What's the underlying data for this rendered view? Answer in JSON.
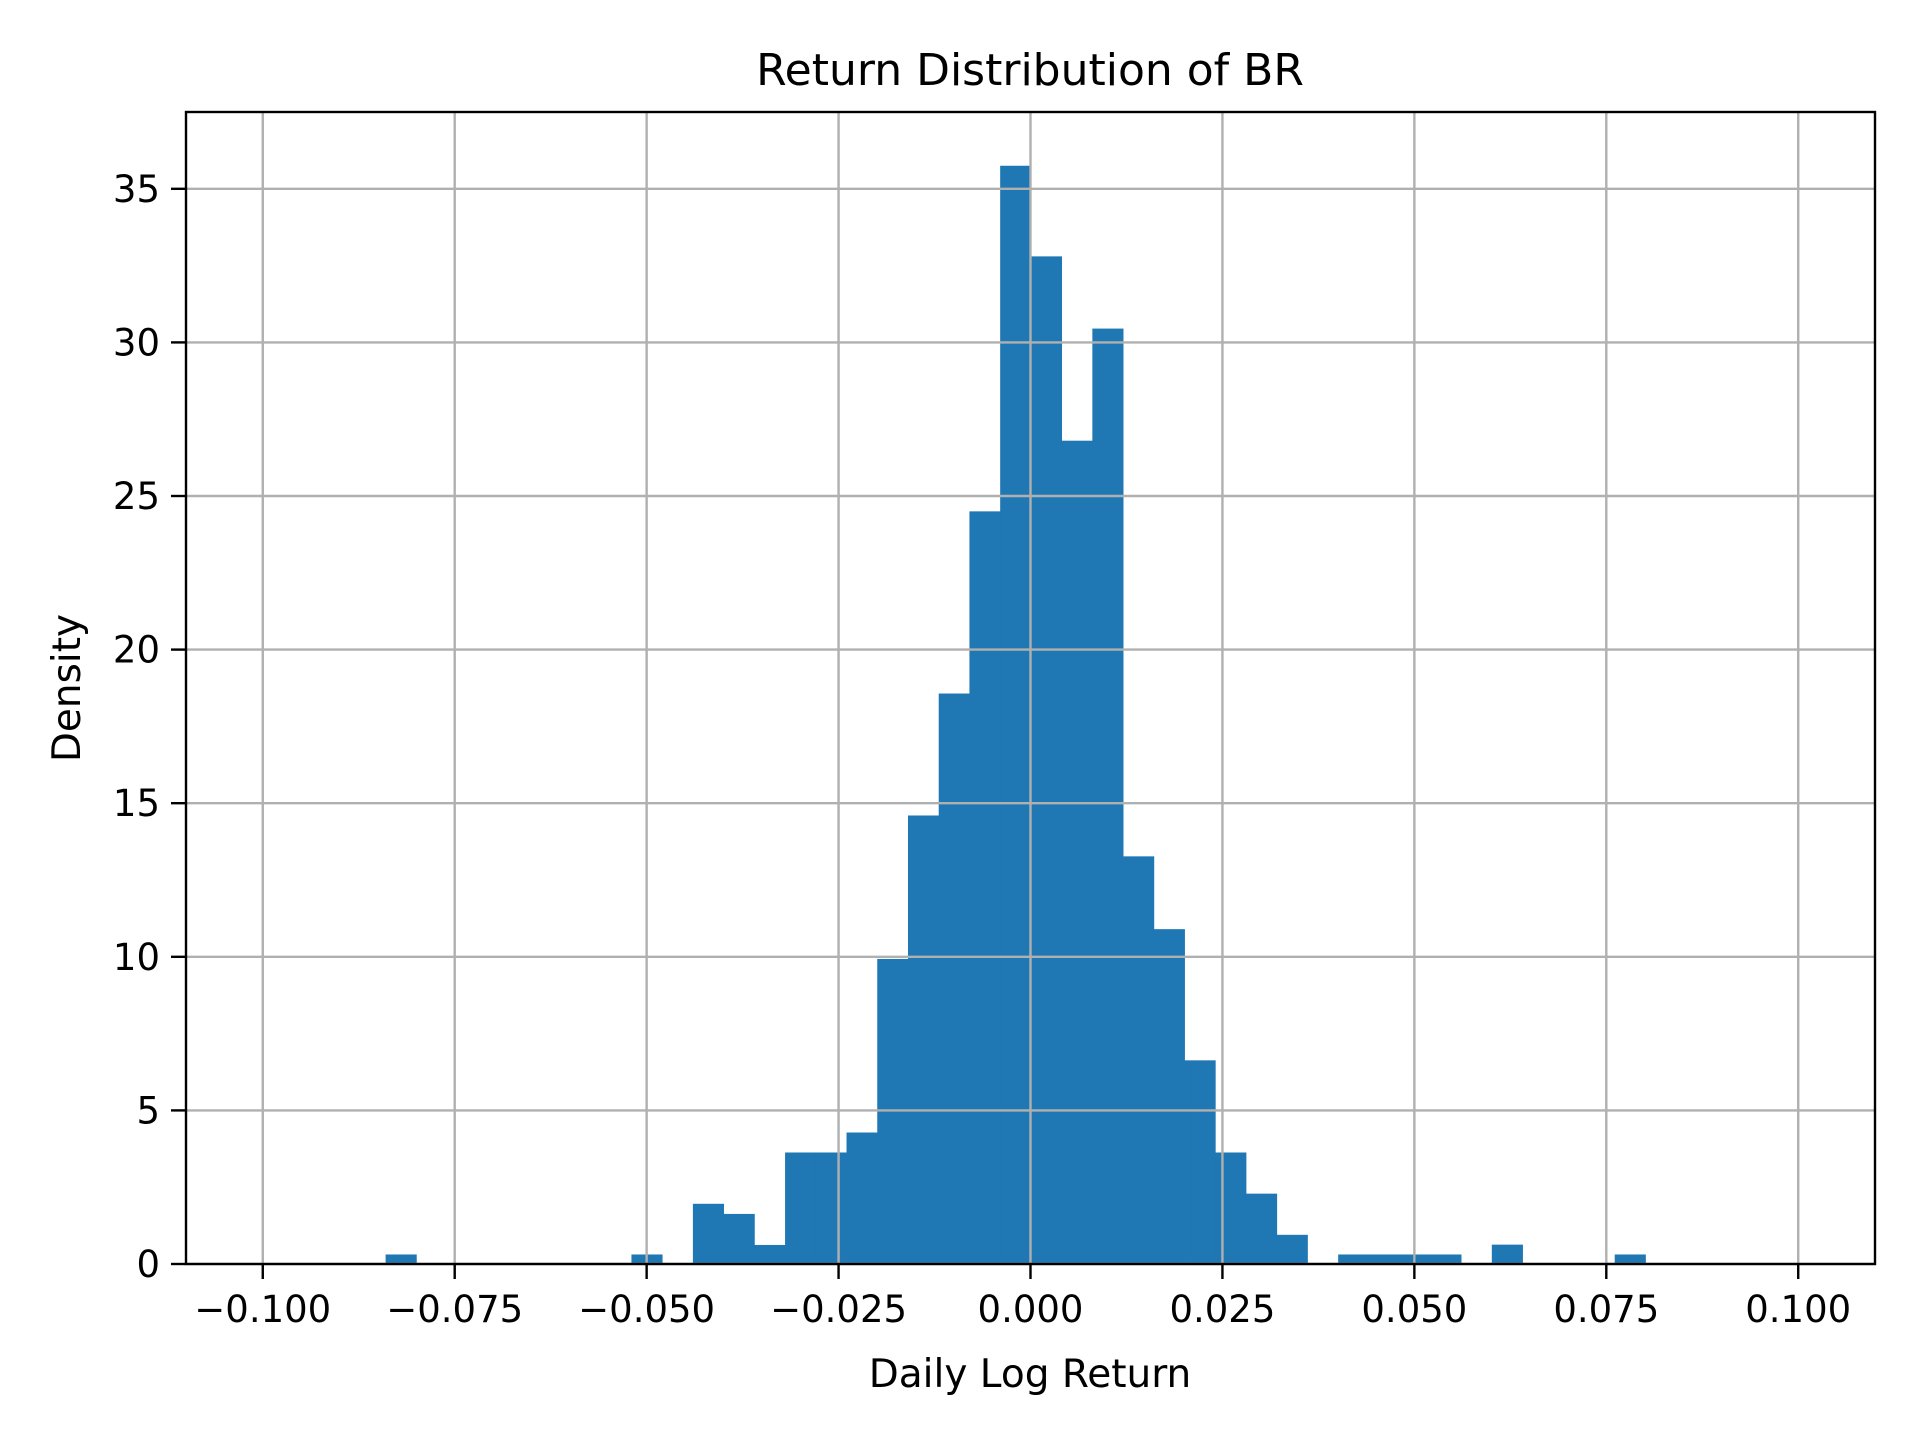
{
  "chart_data": {
    "type": "bar",
    "subtype": "histogram",
    "title": "Return Distribution of BR",
    "xlabel": "Daily Log Return",
    "ylabel": "Density",
    "xlim": [
      -0.11,
      0.11
    ],
    "ylim": [
      0,
      37.5
    ],
    "grid": true,
    "legend": null,
    "x_ticks": [
      -0.1,
      -0.075,
      -0.05,
      -0.025,
      0.0,
      0.025,
      0.05,
      0.075,
      0.1
    ],
    "x_tick_labels": [
      "−0.100",
      "−0.075",
      "−0.050",
      "−0.025",
      "0.000",
      "0.025",
      "0.050",
      "0.075",
      "0.100"
    ],
    "y_ticks": [
      0,
      5,
      10,
      15,
      20,
      25,
      30,
      35
    ],
    "y_tick_labels": [
      "0",
      "5",
      "10",
      "15",
      "20",
      "25",
      "30",
      "35"
    ],
    "bin_start": -0.084,
    "bin_width": 0.004,
    "bin_edges_note": "41 equal-width bins from about -0.0840 to 0.0801",
    "bar_color": "#1f77b4",
    "values": [
      0.31,
      0,
      0,
      0,
      0,
      0,
      0,
      0,
      0.31,
      0,
      1.96,
      1.63,
      0.62,
      3.63,
      3.63,
      4.28,
      9.93,
      14.6,
      18.57,
      24.5,
      35.75,
      32.8,
      26.8,
      30.45,
      13.27,
      10.9,
      6.63,
      3.63,
      2.29,
      0.95,
      0,
      0.31,
      0.31,
      0.31,
      0.31,
      0,
      0.63,
      0,
      0,
      0,
      0.31
    ]
  },
  "style": {
    "bar_color": "#1f77b4",
    "grid_color": "#b0b0b0",
    "axis_color": "#000000",
    "background": "#ffffff"
  }
}
